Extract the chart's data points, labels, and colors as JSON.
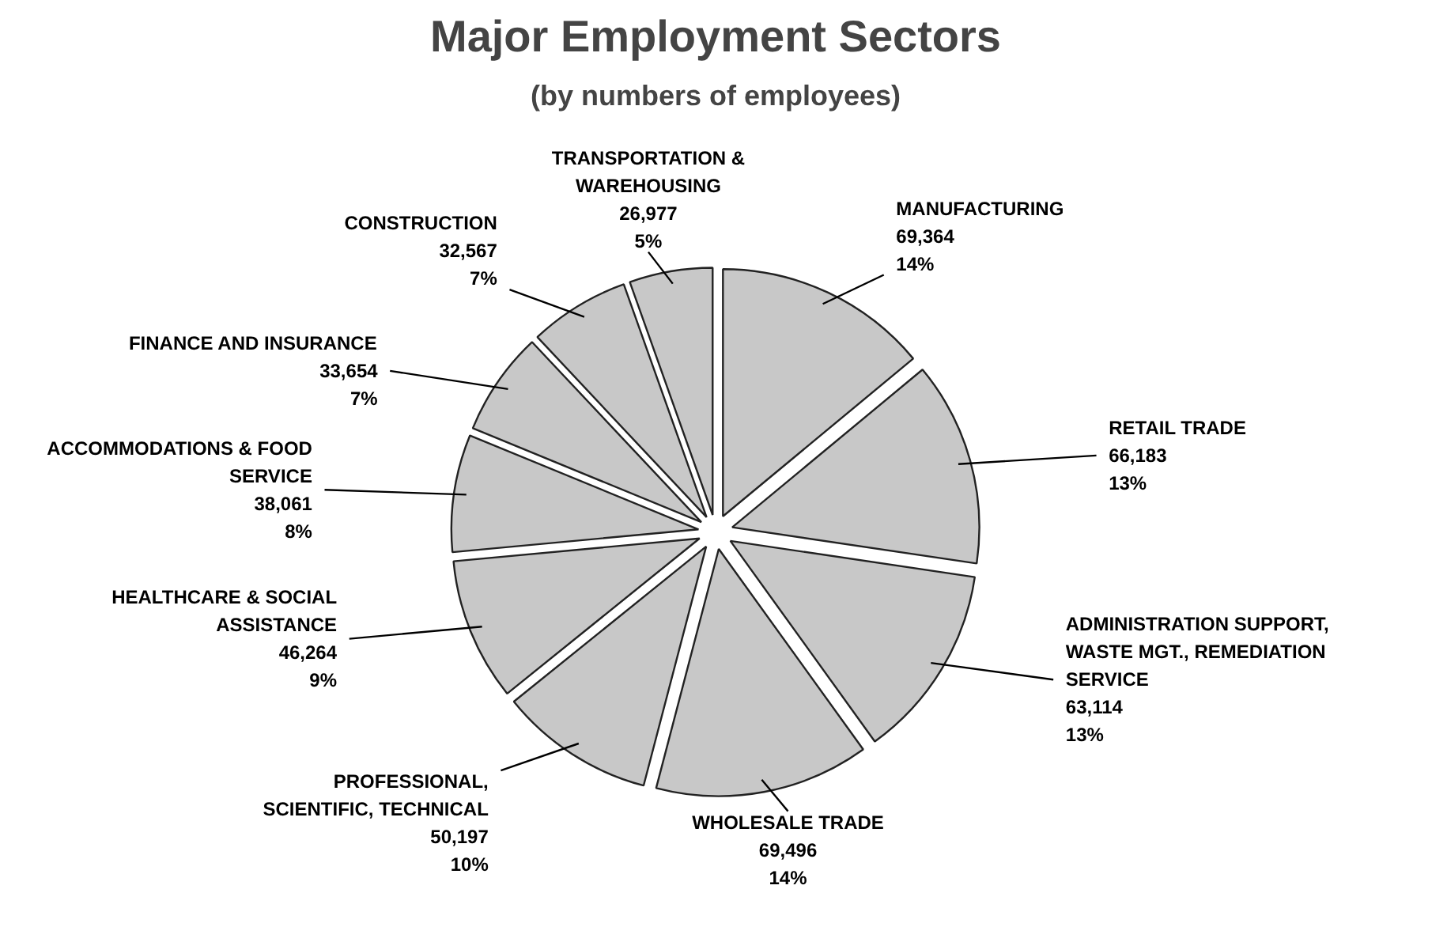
{
  "chart_data": {
    "type": "pie",
    "title": "Major Employment Sectors",
    "subtitle": "(by numbers of employees)",
    "categories": [
      "MANUFACTURING",
      "RETAIL TRADE",
      "ADMINISTRATION SUPPORT, WASTE MGT., REMEDIATION SERVICE",
      "WHOLESALE TRADE",
      "PROFESSIONAL, SCIENTIFIC, TECHNICAL",
      "HEALTHCARE & SOCIAL ASSISTANCE",
      "ACCOMMODATIONS & FOOD SERVICE",
      "FINANCE AND INSURANCE",
      "CONSTRUCTION",
      "TRANSPORTATION & WAREHOUSING"
    ],
    "values": [
      69364,
      66183,
      63114,
      69496,
      50197,
      46264,
      38061,
      33654,
      32567,
      26977
    ],
    "value_labels": [
      "69,364\n14%",
      "66,183\n13%",
      "63,114\n13%",
      "69,496\n14%",
      "50,197\n10%",
      "46,264\n9%",
      "38,061\n8%",
      "33,654\n7%",
      "32,567\n7%",
      "26,977\n5%"
    ],
    "colors": [
      "#c8c8c8",
      "#c8c8c8",
      "#c8c8c8",
      "#c8c8c8",
      "#c8c8c8",
      "#c8c8c8",
      "#c8c8c8",
      "#c8c8c8",
      "#c8c8c8",
      "#c8c8c8"
    ]
  }
}
